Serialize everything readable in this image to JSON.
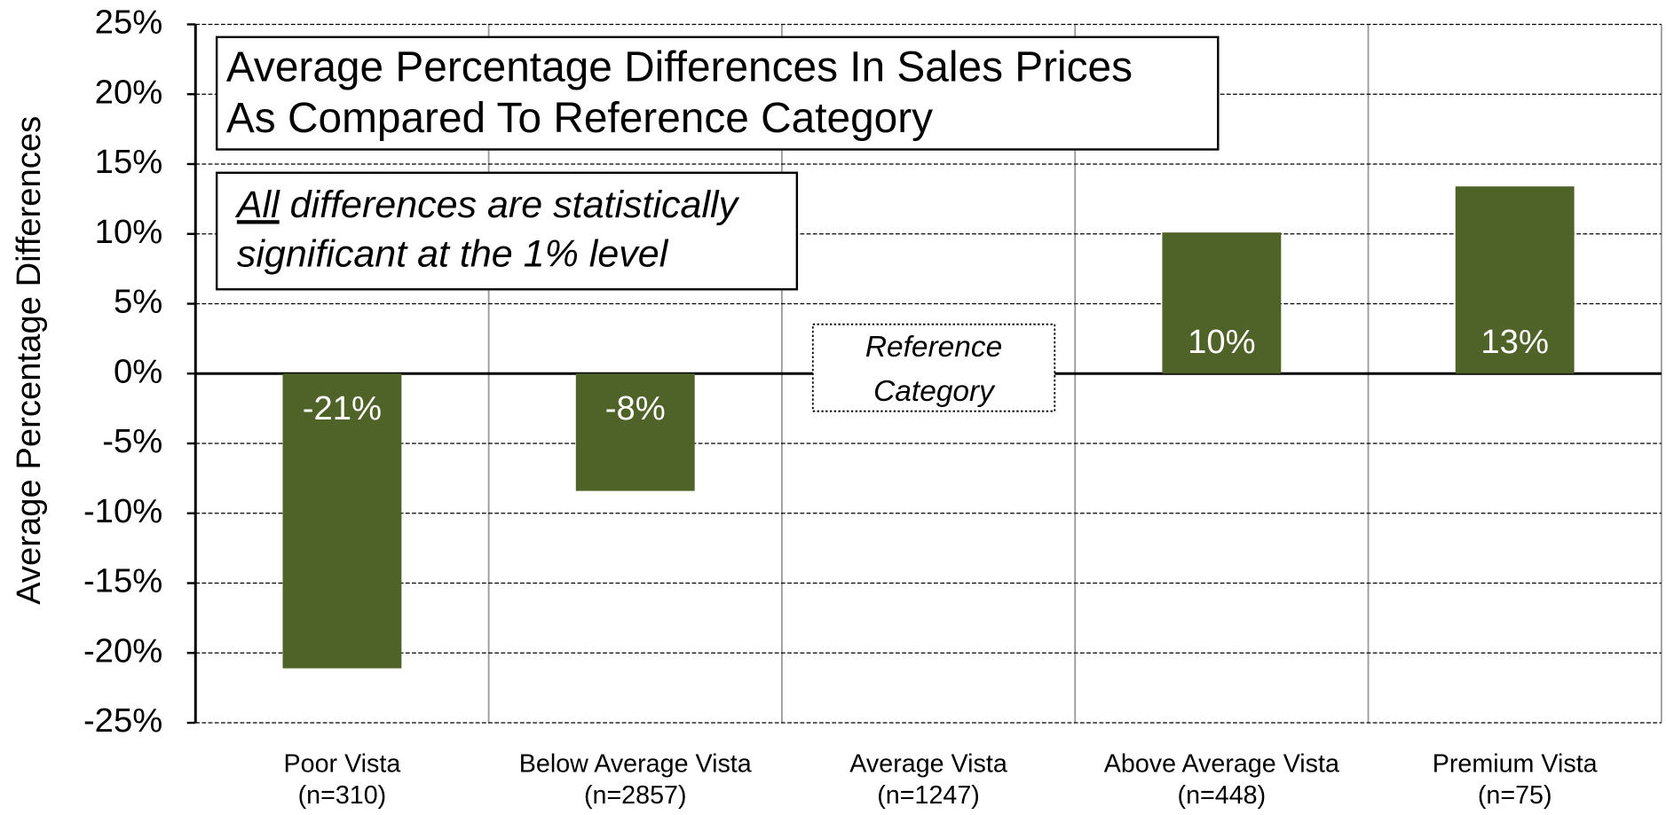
{
  "chart_data": {
    "type": "bar",
    "y_label": "Average Percentage Differences",
    "title_lines": [
      "Average Percentage Differences In Sales Prices",
      "As Compared To Reference Category"
    ],
    "note": {
      "emphasis": "All",
      "rest": " differences are statistically",
      "line2": "significant at the 1% level"
    },
    "reference_lines": [
      "Reference",
      "Category"
    ],
    "categories": [
      [
        "Poor Vista",
        "(n=310)"
      ],
      [
        "Below Average Vista",
        "(n=2857)"
      ],
      [
        "Average Vista",
        "(n=1247)"
      ],
      [
        "Above Average Vista",
        "(n=448)"
      ],
      [
        "Premium Vista",
        "(n=75)"
      ]
    ],
    "values": [
      -21.1,
      -8.4,
      null,
      10.1,
      13.4
    ],
    "value_labels": [
      "-21%",
      "-8%",
      null,
      "10%",
      "13%"
    ],
    "color": "#4f6228",
    "ylim": [
      -25,
      25
    ],
    "yticks": [
      {
        "value": -25,
        "label": "-25%"
      },
      {
        "value": -20,
        "label": "-20%"
      },
      {
        "value": -15,
        "label": "-15%"
      },
      {
        "value": -10,
        "label": "-10%"
      },
      {
        "value": -5,
        "label": "-5%"
      },
      {
        "value": 0,
        "label": "0%"
      },
      {
        "value": 5,
        "label": "5%"
      },
      {
        "value": 10,
        "label": "10%"
      },
      {
        "value": 15,
        "label": "15%"
      },
      {
        "value": 20,
        "label": "20%"
      },
      {
        "value": 25,
        "label": "25%"
      }
    ],
    "grid": true
  }
}
